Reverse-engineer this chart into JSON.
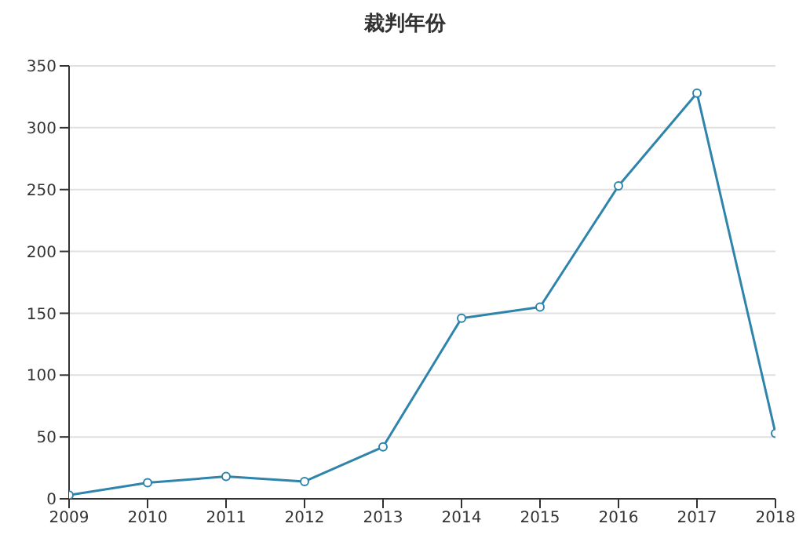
{
  "chart_data": {
    "type": "line",
    "title": "裁判年份",
    "categories": [
      "2009",
      "2010",
      "2011",
      "2012",
      "2013",
      "2014",
      "2015",
      "2016",
      "2017",
      "2018"
    ],
    "series": [
      {
        "color": "#2f84ac",
        "values": [
          3,
          13,
          18,
          14,
          42,
          146,
          155,
          253,
          328,
          53
        ]
      }
    ],
    "ylim": [
      0,
      350
    ],
    "yticks": [
      0,
      50,
      100,
      150,
      200,
      250,
      300,
      350
    ],
    "grid": "y",
    "marker": "circle",
    "line_style": "solid",
    "legend": false
  }
}
